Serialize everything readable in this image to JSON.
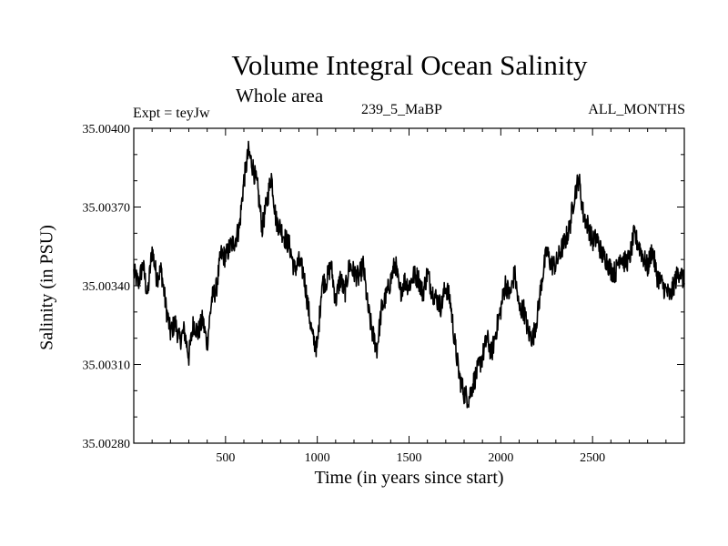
{
  "chart_data": {
    "type": "line",
    "title": "Volume Integral Ocean Salinity",
    "subtitle": "Whole area",
    "annotation_left": "Expt = teyJw",
    "annotation_center": "239_5_MaBP",
    "annotation_right": "ALL_MONTHS",
    "xlabel": "Time (in years since start)",
    "ylabel": "Salinity (in PSU)",
    "xlim": [
      0,
      3000
    ],
    "ylim": [
      35.0028,
      35.004
    ],
    "xticks": [
      500,
      1000,
      1500,
      2000,
      2500
    ],
    "xtick_labels": [
      "500",
      "1000",
      "1500",
      "2000",
      "2500"
    ],
    "yticks": [
      35.0028,
      35.0031,
      35.0034,
      35.0037,
      35.004
    ],
    "ytick_labels": [
      "35.00280",
      "35.00310",
      "35.00340",
      "35.00370",
      "35.00400"
    ],
    "grid": false,
    "series": [
      {
        "name": "salinity",
        "color": "#000000",
        "x": [
          0,
          25,
          50,
          75,
          100,
          125,
          150,
          175,
          200,
          225,
          250,
          275,
          300,
          325,
          350,
          375,
          400,
          425,
          450,
          475,
          500,
          525,
          550,
          575,
          600,
          625,
          650,
          675,
          700,
          725,
          750,
          775,
          800,
          825,
          850,
          875,
          900,
          925,
          950,
          975,
          1000,
          1025,
          1050,
          1075,
          1100,
          1125,
          1150,
          1175,
          1200,
          1225,
          1250,
          1275,
          1300,
          1325,
          1350,
          1375,
          1400,
          1425,
          1450,
          1475,
          1500,
          1525,
          1550,
          1575,
          1600,
          1625,
          1650,
          1675,
          1700,
          1725,
          1750,
          1775,
          1800,
          1825,
          1850,
          1875,
          1900,
          1925,
          1950,
          1975,
          2000,
          2025,
          2050,
          2075,
          2100,
          2125,
          2150,
          2175,
          2200,
          2225,
          2250,
          2275,
          2300,
          2325,
          2350,
          2375,
          2400,
          2425,
          2450,
          2475,
          2500,
          2525,
          2550,
          2575,
          2600,
          2625,
          2650,
          2675,
          2700,
          2725,
          2750,
          2775,
          2800,
          2825,
          2850,
          2875,
          2900,
          2925,
          2950,
          2975,
          3000
        ],
        "values": [
          35.00345,
          35.00341,
          35.00348,
          35.00336,
          35.00354,
          35.00343,
          35.00346,
          35.00332,
          35.00322,
          35.00326,
          35.00319,
          35.00323,
          35.00313,
          35.00326,
          35.00322,
          35.00327,
          35.00318,
          35.00335,
          35.00339,
          35.00352,
          35.00351,
          35.00355,
          35.00357,
          35.00362,
          35.0038,
          35.00391,
          35.00385,
          35.00377,
          35.00362,
          35.00372,
          35.00382,
          35.00365,
          35.00362,
          35.00358,
          35.00355,
          35.00346,
          35.00349,
          35.00345,
          35.00332,
          35.0032,
          35.00316,
          35.00341,
          35.00342,
          35.00348,
          35.00334,
          35.00343,
          35.00337,
          35.00348,
          35.00345,
          35.00343,
          35.00348,
          35.00332,
          35.00322,
          35.00316,
          35.00331,
          35.00336,
          35.00342,
          35.00349,
          35.00337,
          35.00342,
          35.0034,
          35.00344,
          35.00343,
          35.00337,
          35.00345,
          35.00338,
          35.00335,
          35.00332,
          35.0034,
          35.00334,
          35.00318,
          35.00305,
          35.00299,
          35.00297,
          35.00303,
          35.00308,
          35.00313,
          35.0032,
          35.00314,
          35.00323,
          35.00331,
          35.00341,
          35.00336,
          35.00345,
          35.00331,
          35.00331,
          35.00322,
          35.0032,
          35.00329,
          35.00343,
          35.00353,
          35.00348,
          35.00348,
          35.00353,
          35.00357,
          35.00362,
          35.00374,
          35.00381,
          35.00367,
          35.00363,
          35.00357,
          35.00358,
          35.00352,
          35.0035,
          35.00346,
          35.00345,
          35.00352,
          35.00349,
          35.0035,
          35.00359,
          35.00356,
          35.00351,
          35.00347,
          35.00354,
          35.00344,
          35.00341,
          35.00338,
          35.00336,
          35.00342,
          35.00346,
          35.00341
        ]
      }
    ]
  }
}
